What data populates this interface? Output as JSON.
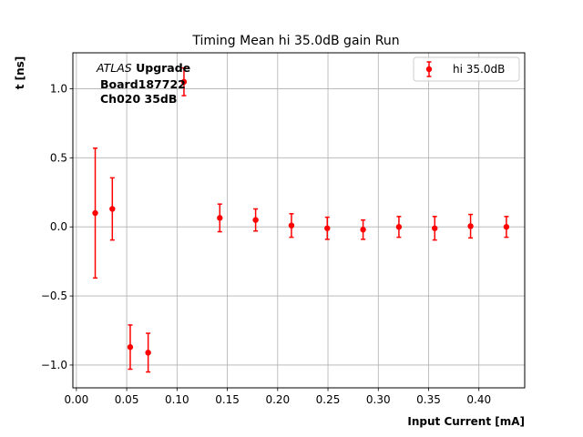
{
  "chart_data": {
    "type": "scatter",
    "title": "Timing Mean hi 35.0dB gain Run",
    "xlabel": "Input Current [mA]",
    "ylabel": "t [ns]",
    "xlim": [
      -0.0035,
      0.4455
    ],
    "ylim": [
      -1.165,
      1.26
    ],
    "xticks": [
      0.0,
      0.05,
      0.1,
      0.15,
      0.2,
      0.25,
      0.3,
      0.35,
      0.4
    ],
    "xtick_labels": [
      "0.00",
      "0.05",
      "0.10",
      "0.15",
      "0.20",
      "0.25",
      "0.30",
      "0.35",
      "0.40"
    ],
    "yticks": [
      -1.0,
      -0.5,
      0.0,
      0.5,
      1.0
    ],
    "ytick_labels": [
      "−1.0",
      "−0.5",
      "0.0",
      "0.5",
      "1.0"
    ],
    "grid": true,
    "legend_position": "top-right",
    "annotation": {
      "atlas_label": "ATLAS",
      "upgrade_label": "Upgrade",
      "board_label": "Board187722",
      "channel_label": "Ch020 35dB"
    },
    "series": [
      {
        "name": "hi 35.0dB",
        "color": "#ff0000",
        "x": [
          0.0187,
          0.0357,
          0.0535,
          0.0713,
          0.1069,
          0.1425,
          0.1781,
          0.2137,
          0.2493,
          0.2849,
          0.3205,
          0.3561,
          0.3917,
          0.4273
        ],
        "y": [
          0.1,
          0.13,
          -0.87,
          -0.91,
          1.05,
          0.065,
          0.05,
          0.01,
          -0.01,
          -0.02,
          0.0,
          -0.01,
          0.005,
          0.0
        ],
        "yerr": [
          0.47,
          0.225,
          0.16,
          0.14,
          0.1,
          0.1,
          0.08,
          0.085,
          0.08,
          0.07,
          0.075,
          0.085,
          0.085,
          0.075
        ]
      }
    ]
  }
}
